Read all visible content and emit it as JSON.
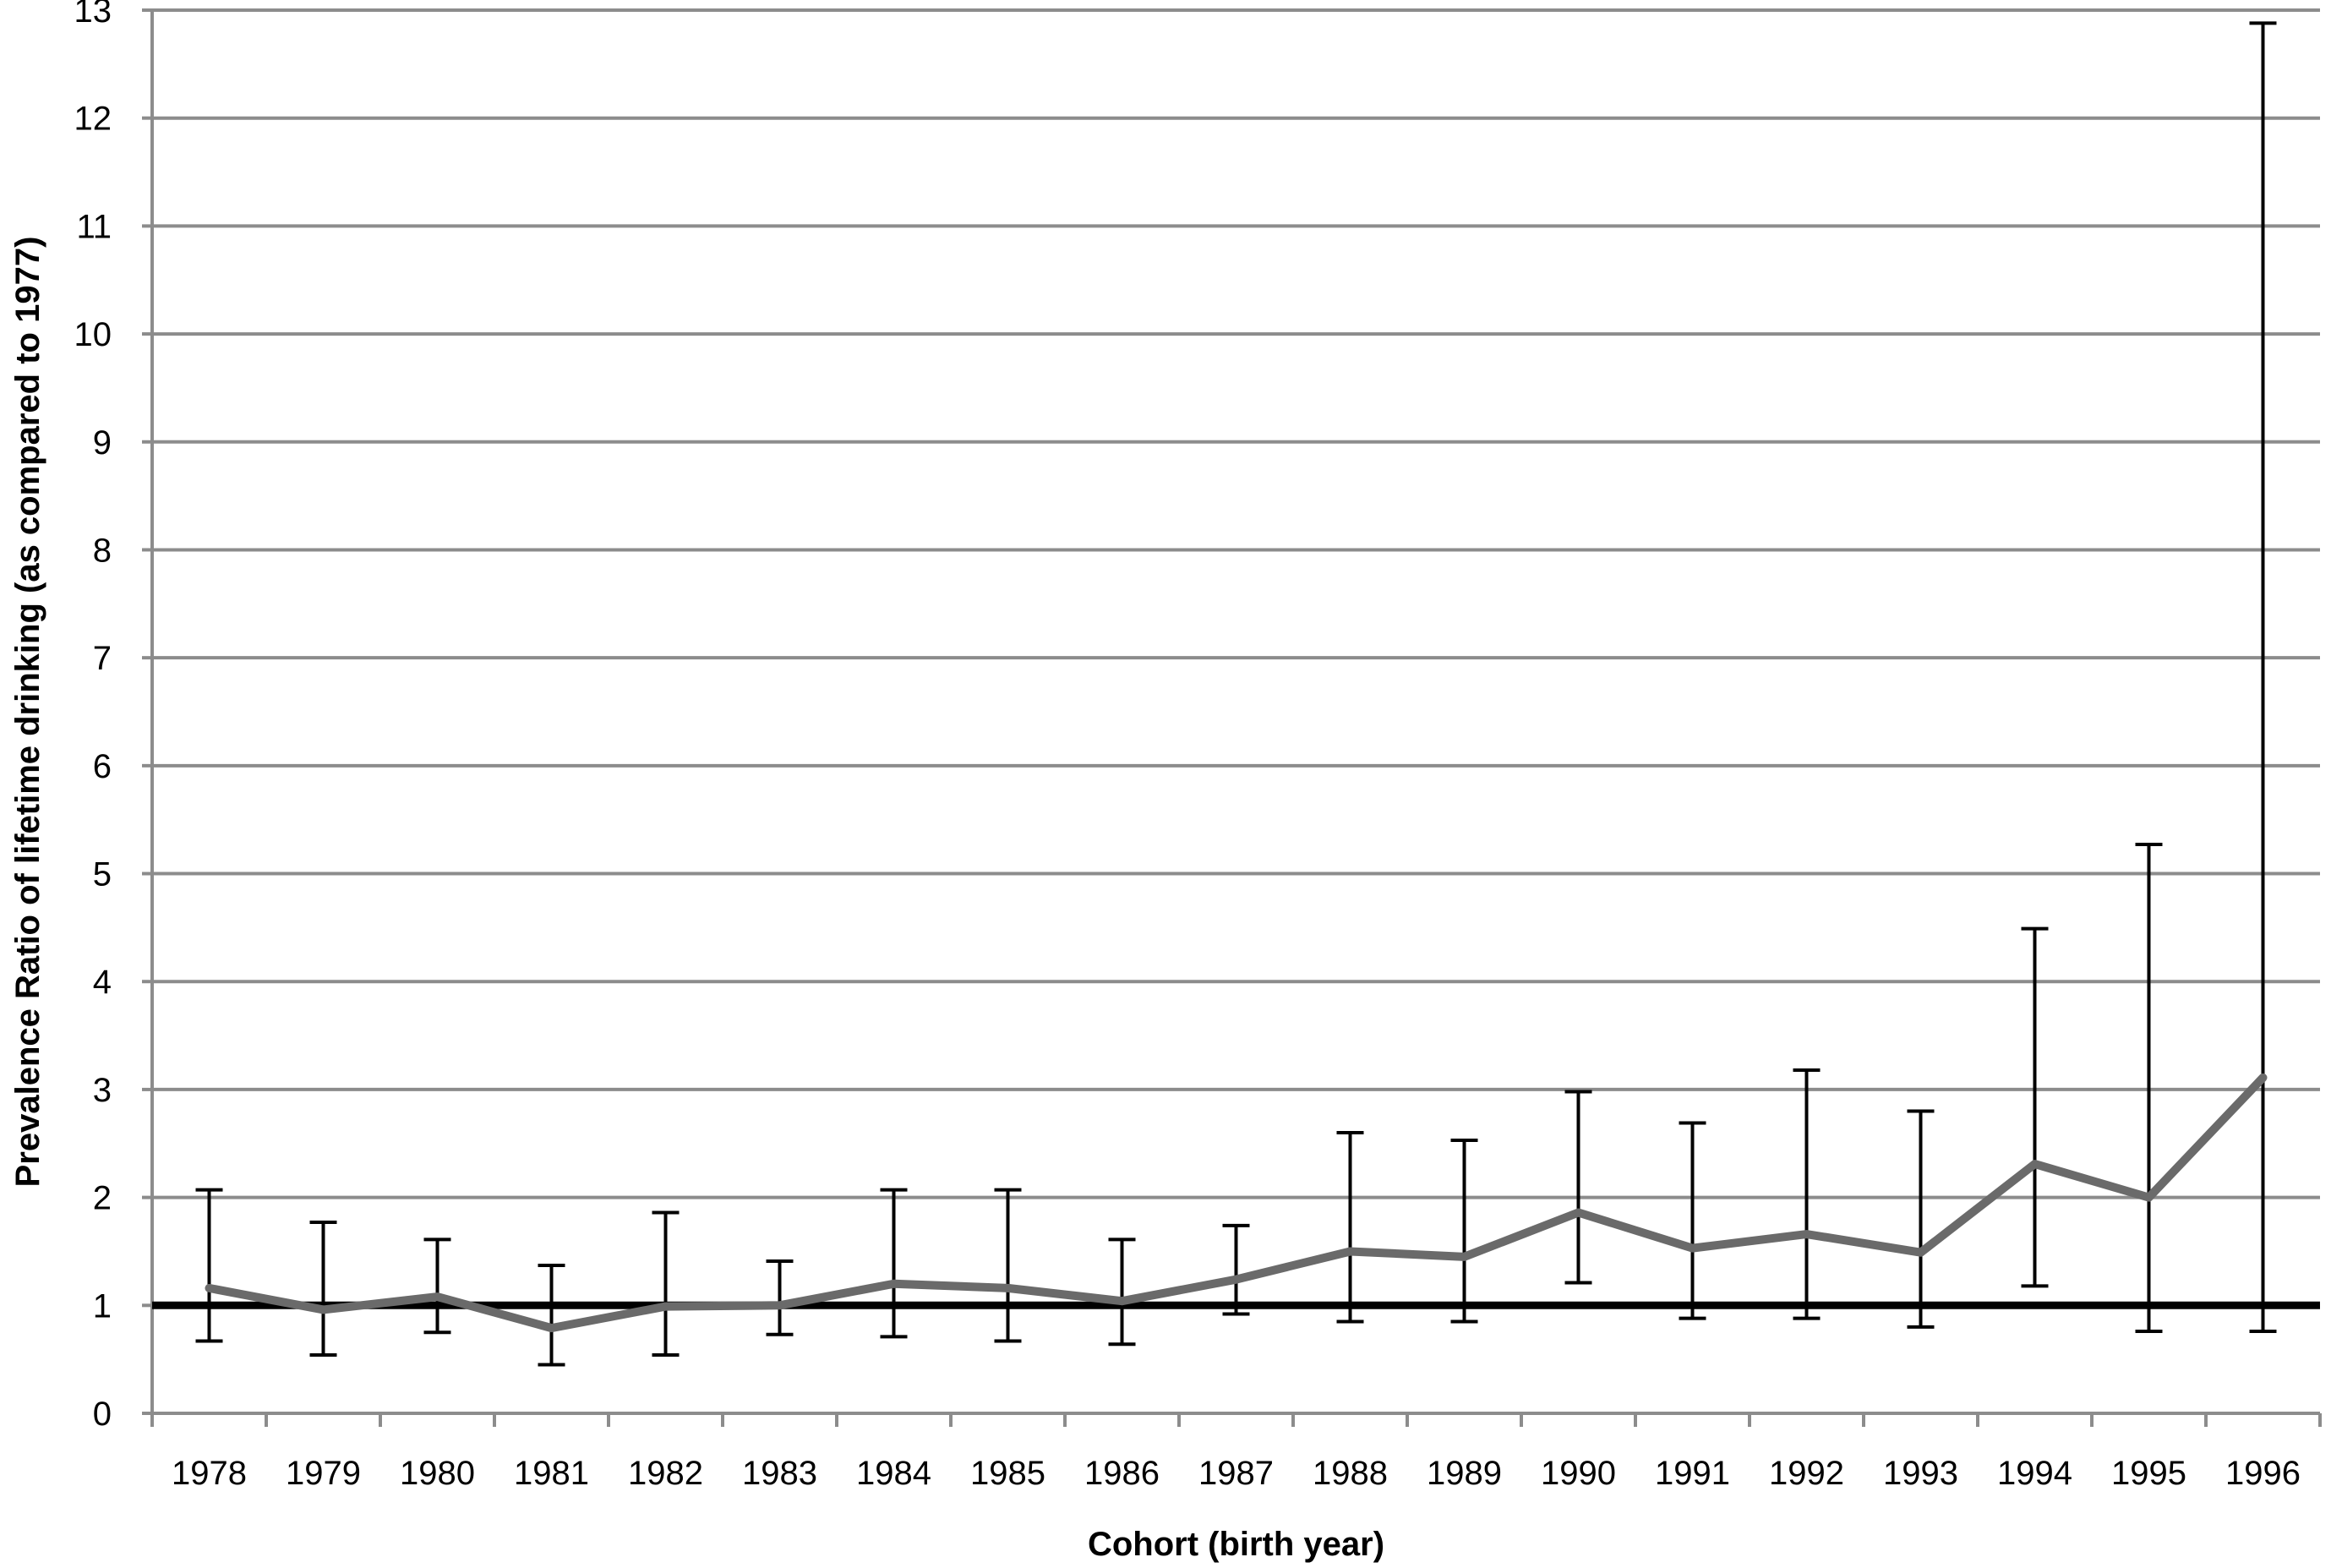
{
  "chart_data": {
    "type": "line",
    "title": "",
    "xlabel": "Cohort (birth year)",
    "ylabel": "Prevalence Ratio of lifetime drinking (as compared to 1977)",
    "ylim": [
      0,
      13
    ],
    "yticks": [
      0,
      1,
      2,
      3,
      4,
      5,
      6,
      7,
      8,
      9,
      10,
      11,
      12,
      13
    ],
    "grid": true,
    "reference_line": 1,
    "categories": [
      "1978",
      "1979",
      "1980",
      "1981",
      "1982",
      "1983",
      "1984",
      "1985",
      "1986",
      "1987",
      "1988",
      "1989",
      "1990",
      "1991",
      "1992",
      "1993",
      "1994",
      "1995",
      "1996"
    ],
    "series": [
      {
        "values": [
          1.16,
          0.96,
          1.08,
          0.79,
          0.99,
          1.0,
          1.2,
          1.16,
          1.04,
          1.24,
          1.5,
          1.45,
          1.86,
          1.53,
          1.66,
          1.49,
          2.31,
          2.0,
          3.11
        ],
        "lower": [
          0.67,
          0.54,
          0.75,
          0.45,
          0.54,
          0.73,
          0.71,
          0.67,
          0.64,
          0.92,
          0.85,
          0.85,
          1.21,
          0.88,
          0.88,
          0.8,
          1.18,
          0.76,
          0.76
        ],
        "upper": [
          2.07,
          1.77,
          1.61,
          1.37,
          1.86,
          1.41,
          2.07,
          2.07,
          1.61,
          1.74,
          2.6,
          2.53,
          2.98,
          2.69,
          3.18,
          2.8,
          4.49,
          5.27,
          12.88
        ],
        "color": "#6a6a6a"
      }
    ],
    "colors": {
      "grid": "#8c8c8c",
      "axis": "#8c8c8c",
      "reference": "#000000",
      "error_bar": "#000000"
    }
  }
}
